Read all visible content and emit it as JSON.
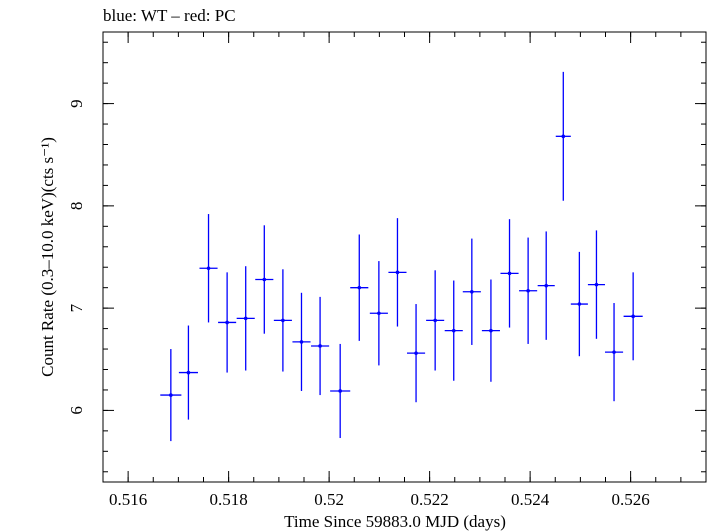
{
  "chart_data": {
    "type": "scatter",
    "title": "blue: WT – red: PC",
    "xlabel": "Time Since 59883.0 MJD (days)",
    "ylabel": "Count Rate (0.3–10.0 keV)(cts s⁻¹)",
    "xlim": [
      0.5155,
      0.5275
    ],
    "ylim": [
      5.3,
      9.7
    ],
    "xticks": [
      0.516,
      0.518,
      0.52,
      0.522,
      0.524,
      0.526
    ],
    "xtick_labels": [
      "0.516",
      "0.518",
      "0.52",
      "0.522",
      "0.524",
      "0.526"
    ],
    "yticks": [
      6,
      7,
      8,
      9
    ],
    "ytick_labels": [
      "6",
      "7",
      "8",
      "9"
    ],
    "grid": false,
    "series": [
      {
        "color": "#0000ff",
        "x": [
          0.51685,
          0.5172,
          0.5176,
          0.51797,
          0.51834,
          0.51871,
          0.51908,
          0.51945,
          0.51982,
          0.52022,
          0.5206,
          0.52099,
          0.52136,
          0.52173,
          0.52211,
          0.52248,
          0.52284,
          0.52322,
          0.52359,
          0.52396,
          0.52432,
          0.52466,
          0.52498,
          0.52532,
          0.52567,
          0.52605
        ],
        "x_err": [
          0.00021,
          0.00019,
          0.00018,
          0.00018,
          0.00018,
          0.00018,
          0.00018,
          0.00018,
          0.00018,
          0.0002,
          0.00018,
          0.00018,
          0.00018,
          0.00018,
          0.00018,
          0.00018,
          0.00018,
          0.00018,
          0.00018,
          0.00018,
          0.00017,
          0.00015,
          0.00017,
          0.00017,
          0.00018,
          0.00019
        ],
        "y": [
          6.15,
          6.37,
          7.39,
          6.86,
          6.9,
          7.28,
          6.88,
          6.67,
          6.63,
          6.19,
          7.2,
          6.95,
          7.35,
          6.56,
          6.88,
          6.78,
          7.16,
          6.78,
          7.34,
          7.17,
          7.22,
          8.68,
          7.04,
          7.23,
          6.57,
          6.92
        ],
        "y_err": [
          0.45,
          0.46,
          0.53,
          0.49,
          0.51,
          0.53,
          0.5,
          0.48,
          0.48,
          0.46,
          0.52,
          0.51,
          0.53,
          0.48,
          0.49,
          0.49,
          0.52,
          0.5,
          0.53,
          0.52,
          0.53,
          0.63,
          0.51,
          0.53,
          0.48,
          0.43
        ]
      }
    ]
  }
}
